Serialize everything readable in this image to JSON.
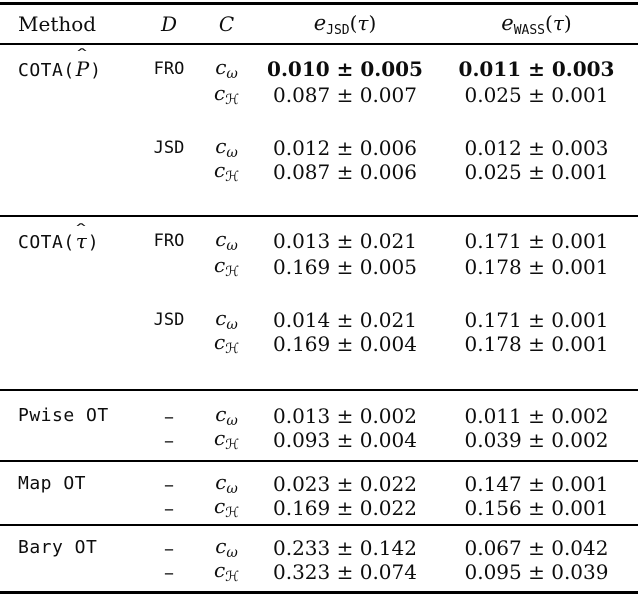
{
  "page": {
    "background": "#ffffff",
    "text_color": "#0d0d0d",
    "rule_color": "#000000"
  },
  "table": {
    "headers": {
      "method": "Method",
      "distance": "D",
      "cost": "C",
      "error_jsd": {
        "base": "e",
        "sub": "JSD",
        "arg_open": "(",
        "arg_var": "τ",
        "arg_close": ")"
      },
      "error_wass": {
        "base": "e",
        "sub": "WASS",
        "arg_open": "(",
        "arg_var": "τ",
        "arg_close": ")"
      }
    },
    "cost_symbols": {
      "omega": "ω",
      "H": "ℋ"
    },
    "hat_glyph": "ˆ",
    "groups": [
      {
        "name": "cota-p",
        "rows": [
          {
            "method": {
              "prefix": "COTA(",
              "hat_arg": "P",
              "suffix": ")"
            },
            "d": "FRO",
            "c": "omega",
            "jsd": "0.010 ± 0.005",
            "wass": "0.011 ± 0.003",
            "bold": true
          },
          {
            "c": "H",
            "jsd": "0.087 ± 0.007",
            "wass": "0.025 ± 0.001"
          },
          {
            "spacer": true
          },
          {
            "d": "JSD",
            "c": "omega",
            "jsd": "0.012 ± 0.006",
            "wass": "0.012 ± 0.003"
          },
          {
            "c": "H",
            "jsd": "0.087 ± 0.006",
            "wass": "0.025 ± 0.001"
          }
        ]
      },
      {
        "name": "cota-tau",
        "rows": [
          {
            "method": {
              "prefix": "COTA(",
              "hat_arg": "τ",
              "suffix": ")"
            },
            "d": "FRO",
            "c": "omega",
            "jsd": "0.013 ± 0.021",
            "wass": "0.171 ± 0.001"
          },
          {
            "c": "H",
            "jsd": "0.169 ± 0.005",
            "wass": "0.178 ± 0.001"
          },
          {
            "spacer": true
          },
          {
            "d": "JSD",
            "c": "omega",
            "jsd": "0.014 ± 0.021",
            "wass": "0.171 ± 0.001"
          },
          {
            "c": "H",
            "jsd": "0.169 ± 0.004",
            "wass": "0.178 ± 0.001"
          }
        ]
      },
      {
        "name": "pwise-ot",
        "rows": [
          {
            "method": {
              "label": "Pwise OT"
            },
            "d": "–",
            "c": "omega",
            "jsd": "0.013 ± 0.002",
            "wass": "0.011 ± 0.002"
          },
          {
            "d": "–",
            "c": "H",
            "jsd": "0.093 ± 0.004",
            "wass": "0.039 ± 0.002"
          }
        ]
      },
      {
        "name": "map-ot",
        "rows": [
          {
            "method": {
              "label": "Map OT"
            },
            "d": "–",
            "c": "omega",
            "jsd": "0.023 ± 0.022",
            "wass": "0.147 ± 0.001"
          },
          {
            "d": "–",
            "c": "H",
            "jsd": "0.169 ± 0.022",
            "wass": "0.156 ± 0.001"
          }
        ]
      },
      {
        "name": "bary-ot",
        "rows": [
          {
            "method": {
              "label": "Bary OT"
            },
            "d": "–",
            "c": "omega",
            "jsd": "0.233 ± 0.142",
            "wass": "0.067 ± 0.042"
          },
          {
            "d": "–",
            "c": "H",
            "jsd": "0.323 ± 0.074",
            "wass": "0.095 ± 0.039"
          }
        ]
      }
    ]
  }
}
